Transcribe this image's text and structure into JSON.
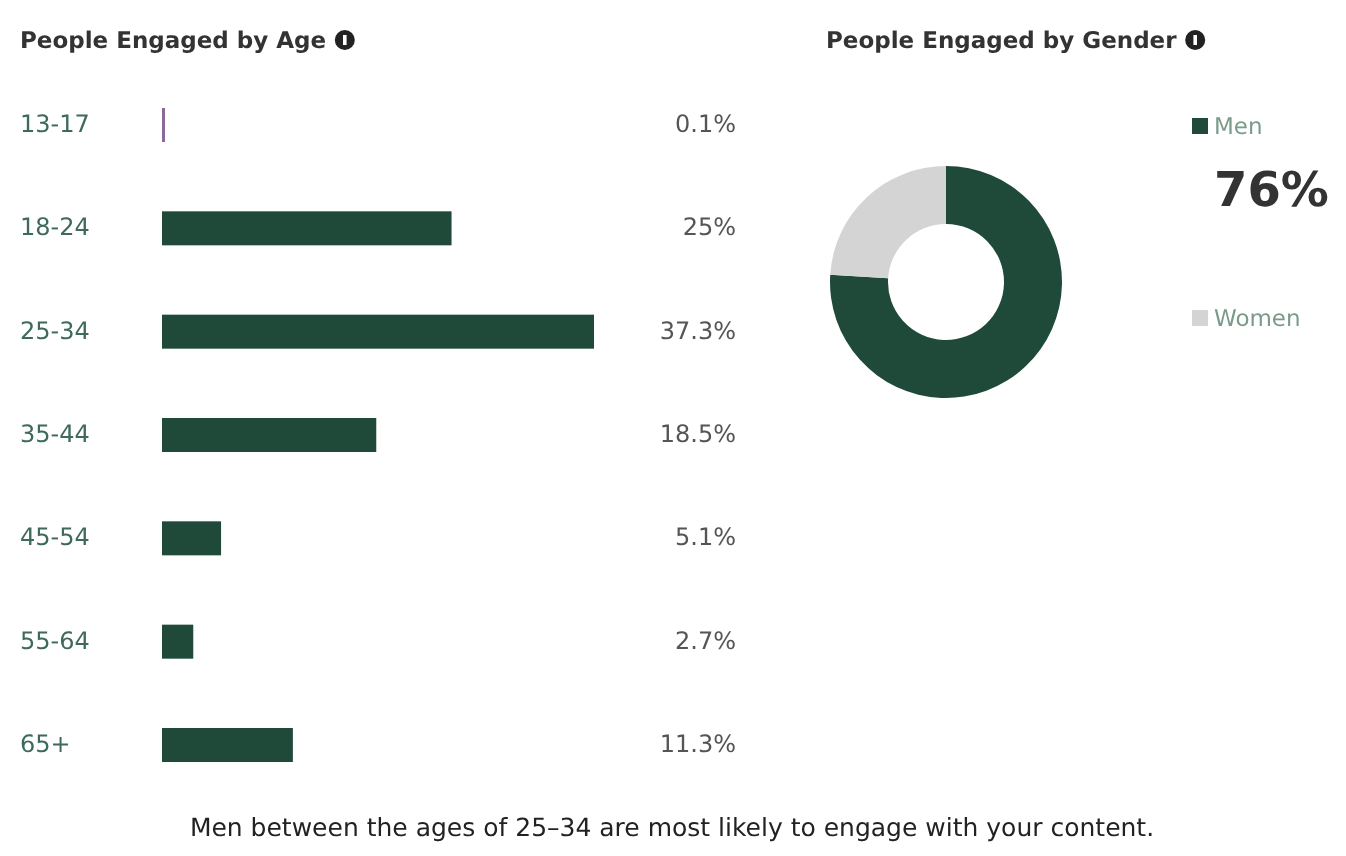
{
  "chart_data": [
    {
      "type": "bar",
      "orientation": "horizontal",
      "title": "People Engaged by Age",
      "categories": [
        "13-17",
        "18-24",
        "25-34",
        "35-44",
        "45-54",
        "55-64",
        "65+"
      ],
      "values": [
        0.1,
        25,
        37.3,
        18.5,
        5.1,
        2.7,
        11.3
      ],
      "colors": [
        "#8a6a9a",
        "#1f4a3a",
        "#1f4a3a",
        "#1f4a3a",
        "#1f4a3a",
        "#1f4a3a",
        "#1f4a3a"
      ],
      "value_labels": [
        "0.1%",
        "25%",
        "37.3%",
        "18.5%",
        "5.1%",
        "2.7%",
        "11.3%"
      ],
      "annotations": [
        "Men between the ages of 25–34 are most likely to engage with your content."
      ]
    },
    {
      "type": "donut",
      "title": "People Engaged by Gender",
      "categories": [
        "Men",
        "Women"
      ],
      "values": [
        76,
        24
      ],
      "colors": [
        "#1f4a3a",
        "#d4d4d4"
      ],
      "value_labels": [
        "76%",
        null
      ],
      "legend": "right"
    }
  ]
}
